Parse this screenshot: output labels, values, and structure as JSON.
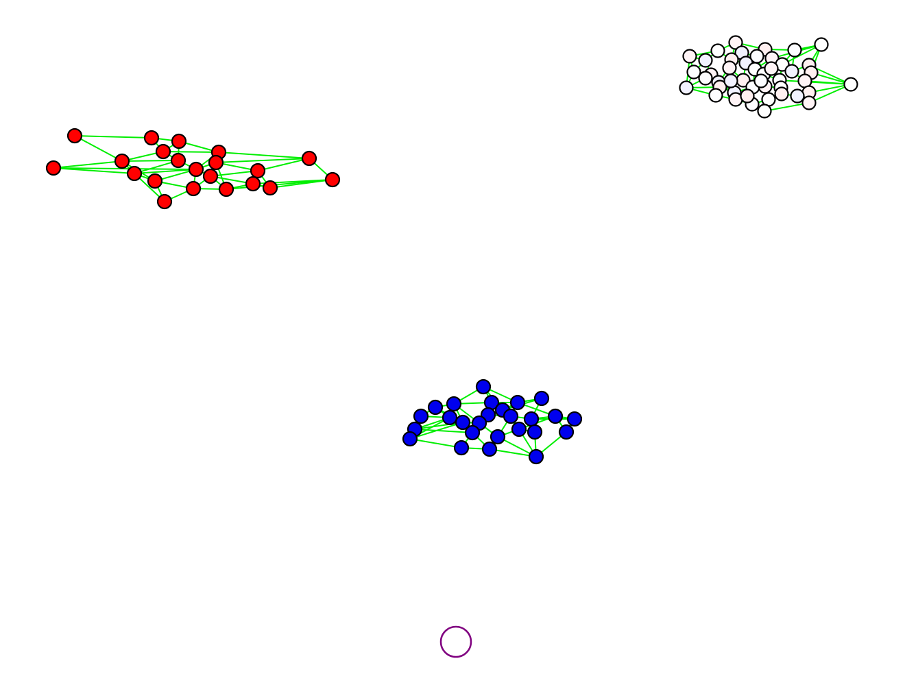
{
  "diagram": {
    "type": "network-graph",
    "edge_color": "#00ee00",
    "node_border_color": "#000000",
    "clusters": [
      {
        "name": "red-cluster",
        "node_fill": "#ff0000",
        "node_count": 24
      },
      {
        "name": "pale-cluster",
        "node_fill": "#fff4f6",
        "node_count": 60
      },
      {
        "name": "blue-cluster",
        "node_fill": "#0000ee",
        "node_count": 30
      }
    ],
    "isolated_ring": {
      "name": "purple-ring",
      "stroke_color": "#800080"
    }
  }
}
